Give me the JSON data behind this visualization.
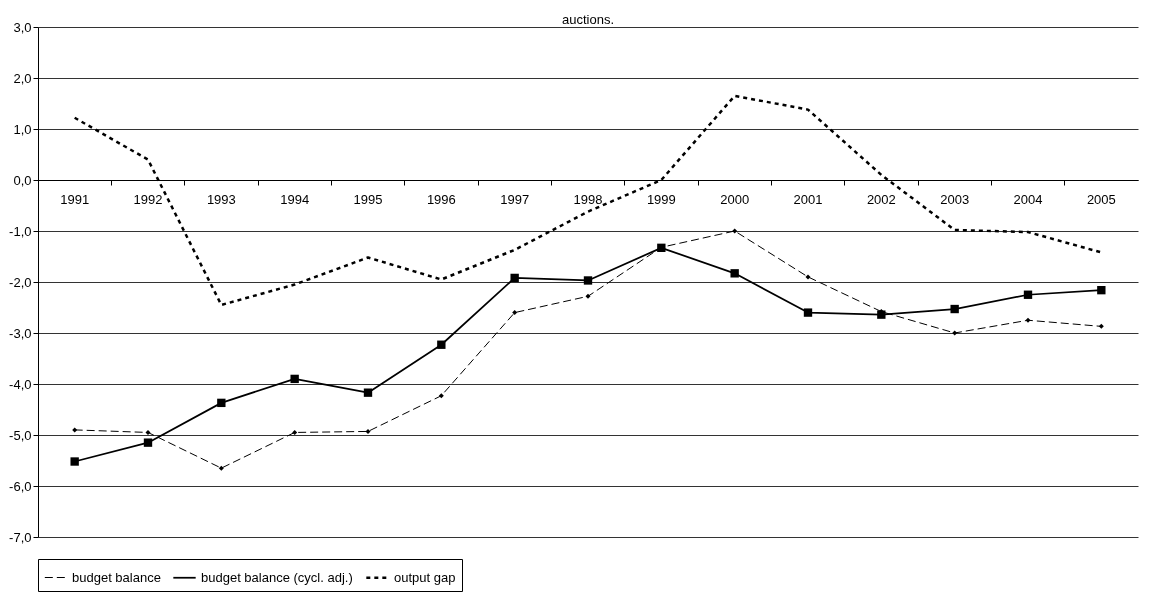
{
  "chart_data": {
    "type": "line",
    "title": "auctions.",
    "categories": [
      "1991",
      "1992",
      "1993",
      "1994",
      "1995",
      "1996",
      "1997",
      "1998",
      "1999",
      "2000",
      "2001",
      "2002",
      "2003",
      "2004",
      "2005"
    ],
    "series": [
      {
        "name": "budget balance",
        "color": "#000000",
        "marker": "diamond",
        "line_style": "dashed",
        "values": [
          -4.9,
          -4.95,
          -5.65,
          -4.95,
          -4.93,
          -4.23,
          -2.6,
          -2.28,
          -1.32,
          -1.0,
          -1.9,
          -2.58,
          -3.0,
          -2.75,
          -2.87
        ]
      },
      {
        "name": "budget balance (cycl. adj.)",
        "color": "#000000",
        "marker": "square",
        "line_style": "solid",
        "values": [
          -5.52,
          -5.15,
          -4.37,
          -3.9,
          -4.17,
          -3.23,
          -1.92,
          -1.97,
          -1.33,
          -1.83,
          -2.6,
          -2.64,
          -2.53,
          -2.25,
          -2.16
        ]
      },
      {
        "name": "output gap",
        "color": "#000000",
        "marker": "none",
        "line_style": "dotted",
        "values": [
          1.22,
          0.4,
          -2.45,
          -2.05,
          -1.52,
          -1.95,
          -1.37,
          -0.62,
          0.0,
          1.65,
          1.38,
          0.1,
          -0.98,
          -1.02,
          -1.42
        ]
      }
    ],
    "ylim": [
      -7,
      3
    ],
    "yticks": [
      {
        "value": 3,
        "label": "3,0"
      },
      {
        "value": 2,
        "label": "2,0"
      },
      {
        "value": 1,
        "label": "1,0"
      },
      {
        "value": 0,
        "label": "0,0"
      },
      {
        "value": -1,
        "label": "-1,0"
      },
      {
        "value": -2,
        "label": "-2,0"
      },
      {
        "value": -3,
        "label": "-3,0"
      },
      {
        "value": -4,
        "label": "-4,0"
      },
      {
        "value": -5,
        "label": "-5,0"
      },
      {
        "value": -6,
        "label": "-6,0"
      },
      {
        "value": -7,
        "label": "-7,0"
      }
    ],
    "grid": "y",
    "legend": "bottom"
  }
}
